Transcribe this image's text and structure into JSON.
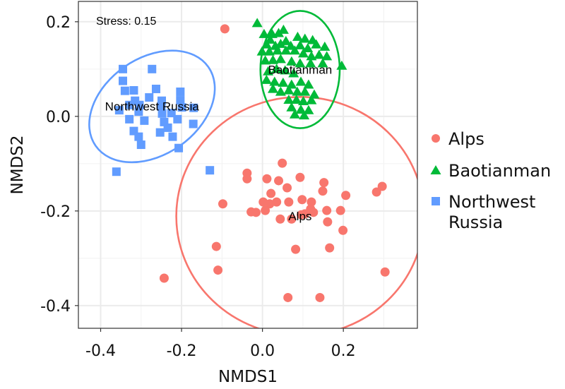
{
  "chart_data": {
    "type": "scatter",
    "title": "",
    "xlabel": "NMDS1",
    "ylabel": "NMDS2",
    "xlim": [
      -0.455,
      0.383
    ],
    "ylim": [
      -0.448,
      0.243
    ],
    "x_ticks": [
      -0.4,
      -0.2,
      0.0,
      0.2
    ],
    "x_tick_labels": [
      "-0.4",
      "-0.2",
      "0.0",
      "0.2"
    ],
    "y_ticks": [
      0.2,
      0.0,
      -0.2,
      -0.4
    ],
    "y_tick_labels": [
      "0.2",
      "0.0",
      "-0.2",
      "-0.4"
    ],
    "grid": true,
    "annotation": "Stress: 0.15",
    "legend_position": "right",
    "series": [
      {
        "name": "Alps",
        "legend_label_lines": [
          "Alps"
        ],
        "color": "#F8766D",
        "marker": "circle",
        "centroid_label": "Alps",
        "ellipse": {
          "cx": 0.093,
          "cy": -0.211,
          "rx": 0.306,
          "ry": 0.252,
          "angle": 0
        },
        "points": [
          [
            -0.093,
            0.185
          ],
          [
            -0.038,
            -0.12
          ],
          [
            -0.038,
            -0.132
          ],
          [
            0.011,
            -0.132
          ],
          [
            0.049,
            -0.099
          ],
          [
            0.04,
            -0.136
          ],
          [
            0.093,
            -0.129
          ],
          [
            0.061,
            -0.151
          ],
          [
            0.152,
            -0.14
          ],
          [
            0.149,
            -0.158
          ],
          [
            0.206,
            -0.167
          ],
          [
            0.021,
            -0.163
          ],
          [
            0.098,
            -0.176
          ],
          [
            0.002,
            -0.181
          ],
          [
            0.018,
            -0.185
          ],
          [
            0.035,
            -0.181
          ],
          [
            0.065,
            -0.181
          ],
          [
            0.121,
            -0.181
          ],
          [
            0.119,
            -0.196
          ],
          [
            0.126,
            -0.203
          ],
          [
            -0.098,
            -0.185
          ],
          [
            -0.028,
            -0.202
          ],
          [
            -0.016,
            -0.203
          ],
          [
            0.007,
            -0.199
          ],
          [
            0.044,
            -0.217
          ],
          [
            0.072,
            -0.217
          ],
          [
            0.096,
            -0.208
          ],
          [
            0.105,
            -0.206
          ],
          [
            0.159,
            -0.199
          ],
          [
            0.193,
            -0.199
          ],
          [
            0.161,
            -0.223
          ],
          [
            0.199,
            -0.241
          ],
          [
            0.282,
            -0.16
          ],
          [
            0.296,
            -0.148
          ],
          [
            -0.114,
            -0.275
          ],
          [
            0.082,
            -0.281
          ],
          [
            0.166,
            -0.278
          ],
          [
            -0.11,
            -0.325
          ],
          [
            0.303,
            -0.329
          ],
          [
            -0.243,
            -0.342
          ],
          [
            0.063,
            -0.383
          ],
          [
            0.142,
            -0.383
          ]
        ]
      },
      {
        "name": "Baotianman",
        "legend_label_lines": [
          "Baotianman"
        ],
        "color": "#00BA38",
        "marker": "triangle",
        "centroid_label": "Baotianman",
        "ellipse": {
          "cx": 0.093,
          "cy": 0.099,
          "rx": 0.098,
          "ry": 0.124,
          "angle": 0
        },
        "points": [
          [
            -0.013,
            0.196
          ],
          [
            0.052,
            0.182
          ],
          [
            0.004,
            0.173
          ],
          [
            0.024,
            0.173
          ],
          [
            0.04,
            0.175
          ],
          [
            0.087,
            0.167
          ],
          [
            0.105,
            0.163
          ],
          [
            0.019,
            0.161
          ],
          [
            0.058,
            0.158
          ],
          [
            0.124,
            0.16
          ],
          [
            0.01,
            0.151
          ],
          [
            0.032,
            0.148
          ],
          [
            0.045,
            0.152
          ],
          [
            0.07,
            0.148
          ],
          [
            0.093,
            0.149
          ],
          [
            0.112,
            0.143
          ],
          [
            0.133,
            0.151
          ],
          [
            0.154,
            0.146
          ],
          [
            -0.001,
            0.136
          ],
          [
            0.017,
            0.136
          ],
          [
            0.037,
            0.138
          ],
          [
            0.058,
            0.138
          ],
          [
            0.08,
            0.138
          ],
          [
            0.101,
            0.132
          ],
          [
            0.121,
            0.126
          ],
          [
            0.14,
            0.129
          ],
          [
            0.159,
            0.126
          ],
          [
            0.007,
            0.117
          ],
          [
            0.026,
            0.118
          ],
          [
            0.045,
            0.12
          ],
          [
            0.072,
            0.115
          ],
          [
            0.093,
            0.111
          ],
          [
            0.119,
            0.111
          ],
          [
            0.149,
            0.111
          ],
          [
            0.196,
            0.106
          ],
          [
            0.014,
            0.094
          ],
          [
            0.035,
            0.099
          ],
          [
            0.056,
            0.096
          ],
          [
            0.077,
            0.09
          ],
          [
            0.01,
            0.076
          ],
          [
            0.03,
            0.072
          ],
          [
            0.051,
            0.07
          ],
          [
            0.072,
            0.066
          ],
          [
            0.095,
            0.072
          ],
          [
            0.114,
            0.066
          ],
          [
            0.026,
            0.057
          ],
          [
            0.045,
            0.051
          ],
          [
            0.065,
            0.054
          ],
          [
            0.086,
            0.051
          ],
          [
            0.105,
            0.051
          ],
          [
            0.128,
            0.045
          ],
          [
            0.065,
            0.034
          ],
          [
            0.084,
            0.034
          ],
          [
            0.101,
            0.031
          ],
          [
            0.121,
            0.033
          ],
          [
            0.072,
            0.018
          ],
          [
            0.095,
            0.013
          ],
          [
            0.114,
            0.012
          ],
          [
            0.08,
            0.003
          ],
          [
            0.103,
            0.001
          ]
        ]
      },
      {
        "name": "Northwest Russia",
        "legend_label_lines": [
          "Northwest",
          "Russia"
        ],
        "color": "#619CFF",
        "marker": "square",
        "centroid_label": "Northwest Russia",
        "ellipse": {
          "cx": -0.273,
          "cy": 0.021,
          "rx": 0.17,
          "ry": 0.102,
          "angle": -35
        },
        "points": [
          [
            -0.345,
            0.1
          ],
          [
            -0.273,
            0.1
          ],
          [
            -0.345,
            0.075
          ],
          [
            -0.34,
            0.054
          ],
          [
            -0.318,
            0.055
          ],
          [
            -0.263,
            0.058
          ],
          [
            -0.203,
            0.052
          ],
          [
            -0.203,
            0.034
          ],
          [
            -0.28,
            0.04
          ],
          [
            -0.315,
            0.033
          ],
          [
            -0.329,
            0.024
          ],
          [
            -0.304,
            0.024
          ],
          [
            -0.249,
            0.033
          ],
          [
            -0.25,
            0.021
          ],
          [
            -0.199,
            0.019
          ],
          [
            -0.17,
            0.018
          ],
          [
            -0.354,
            0.013
          ],
          [
            -0.306,
            0.01
          ],
          [
            -0.248,
            0.006
          ],
          [
            -0.225,
            0.007
          ],
          [
            -0.329,
            -0.006
          ],
          [
            -0.292,
            -0.009
          ],
          [
            -0.243,
            -0.012
          ],
          [
            -0.21,
            -0.006
          ],
          [
            -0.171,
            -0.016
          ],
          [
            -0.318,
            -0.031
          ],
          [
            -0.253,
            -0.034
          ],
          [
            -0.234,
            -0.024
          ],
          [
            -0.306,
            -0.043
          ],
          [
            -0.3,
            -0.06
          ],
          [
            -0.222,
            -0.043
          ],
          [
            -0.207,
            -0.067
          ],
          [
            -0.361,
            -0.117
          ],
          [
            -0.13,
            -0.114
          ]
        ]
      }
    ]
  }
}
